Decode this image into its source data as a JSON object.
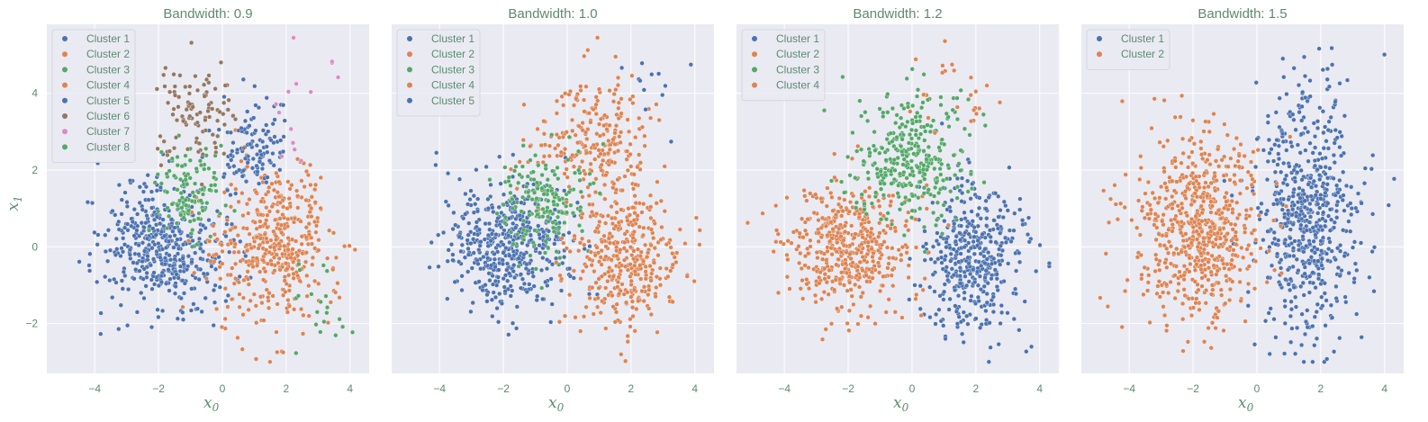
{
  "chart_data": [
    {
      "type": "scatter",
      "title": "Bandwidth: 0.9",
      "xlabel": "x0",
      "ylabel": "x1",
      "xlim": [
        -5.5,
        4.6
      ],
      "ylim": [
        -3.3,
        5.8
      ],
      "xticks": [
        -4,
        -2,
        0,
        2,
        4
      ],
      "yticks": [
        -2,
        0,
        2,
        4
      ],
      "legend_position": "upper-left",
      "series": [
        {
          "name": "Cluster 1",
          "color": "#4c72b0",
          "center": [
            -1.8,
            0.0
          ],
          "spread": [
            1.0,
            0.8
          ],
          "count": 470
        },
        {
          "name": "Cluster 2",
          "color": "#dd8452",
          "center": [
            1.6,
            0.0
          ],
          "spread": [
            0.9,
            1.0
          ],
          "count": 430
        },
        {
          "name": "Cluster 3",
          "color": "#55a868",
          "center": [
            -1.0,
            1.5
          ],
          "spread": [
            0.5,
            0.6
          ],
          "count": 120
        },
        {
          "name": "Cluster 4",
          "color": "#dd8452",
          "center": [
            2.7,
            1.7
          ],
          "spread": [
            0.3,
            0.3
          ],
          "count": 6
        },
        {
          "name": "Cluster 5",
          "color": "#4c72b0",
          "center": [
            1.0,
            2.6
          ],
          "spread": [
            0.5,
            0.6
          ],
          "count": 120
        },
        {
          "name": "Cluster 6",
          "color": "#937860",
          "center": [
            -0.8,
            3.4
          ],
          "spread": [
            0.6,
            0.6
          ],
          "count": 100
        },
        {
          "name": "Cluster 7",
          "color": "#da8bc3",
          "center": [
            2.3,
            3.6
          ],
          "spread": [
            0.6,
            0.8
          ],
          "count": 14
        },
        {
          "name": "Cluster 8",
          "color": "#55a868",
          "center": [
            3.0,
            -1.6
          ],
          "spread": [
            0.4,
            0.7
          ],
          "count": 20
        }
      ]
    },
    {
      "type": "scatter",
      "title": "Bandwidth: 1.0",
      "xlabel": "x0",
      "ylabel": "",
      "xlim": [
        -5.5,
        4.6
      ],
      "ylim": [
        -3.3,
        5.8
      ],
      "xticks": [
        -4,
        -2,
        0,
        2,
        4
      ],
      "yticks": [
        -2,
        0,
        2,
        4
      ],
      "legend_position": "upper-left",
      "series": [
        {
          "name": "Cluster 1",
          "color": "#4c72b0",
          "center": [
            -1.8,
            0.0
          ],
          "spread": [
            1.0,
            0.8
          ],
          "count": 470
        },
        {
          "name": "Cluster 2",
          "color": "#dd8452",
          "center": [
            0.8,
            2.8
          ],
          "spread": [
            0.9,
            0.8
          ],
          "count": 240
        },
        {
          "name": "Cluster 3",
          "color": "#55a868",
          "center": [
            -0.8,
            1.2
          ],
          "spread": [
            0.7,
            0.7
          ],
          "count": 180
        },
        {
          "name": "Cluster 4",
          "color": "#dd8452",
          "center": [
            1.8,
            -0.3
          ],
          "spread": [
            0.8,
            0.9
          ],
          "count": 380
        },
        {
          "name": "Cluster 5",
          "color": "#4c72b0",
          "center": [
            2.6,
            4.4
          ],
          "spread": [
            0.5,
            0.6
          ],
          "count": 12
        }
      ]
    },
    {
      "type": "scatter",
      "title": "Bandwidth: 1.2",
      "xlabel": "x0",
      "ylabel": "",
      "xlim": [
        -5.5,
        4.6
      ],
      "ylim": [
        -3.3,
        5.8
      ],
      "xticks": [
        -4,
        -2,
        0,
        2,
        4
      ],
      "yticks": [
        -2,
        0,
        2,
        4
      ],
      "legend_position": "upper-left",
      "series": [
        {
          "name": "Cluster 1",
          "color": "#4c72b0",
          "center": [
            1.9,
            -0.3
          ],
          "spread": [
            0.8,
            1.0
          ],
          "count": 420
        },
        {
          "name": "Cluster 2",
          "color": "#dd8452",
          "center": [
            -2.0,
            0.0
          ],
          "spread": [
            1.0,
            0.8
          ],
          "count": 480
        },
        {
          "name": "Cluster 3",
          "color": "#55a868",
          "center": [
            0.0,
            2.3
          ],
          "spread": [
            0.9,
            0.9
          ],
          "count": 330
        },
        {
          "name": "Cluster 4",
          "color": "#dd8452",
          "center": [
            1.2,
            4.0
          ],
          "spread": [
            0.8,
            0.6
          ],
          "count": 25
        }
      ]
    },
    {
      "type": "scatter",
      "title": "Bandwidth: 1.5",
      "xlabel": "x0",
      "ylabel": "",
      "xlim": [
        -5.5,
        4.6
      ],
      "ylim": [
        -3.3,
        5.8
      ],
      "xticks": [
        -4,
        -2,
        0,
        2,
        4
      ],
      "yticks": [
        -2,
        0,
        2,
        4
      ],
      "legend_position": "upper-left",
      "series": [
        {
          "name": "Cluster 1",
          "color": "#4c72b0",
          "center": [
            1.6,
            0.9
          ],
          "spread": [
            0.8,
            1.6
          ],
          "count": 620
        },
        {
          "name": "Cluster 2",
          "color": "#dd8452",
          "center": [
            -1.8,
            0.5
          ],
          "spread": [
            1.0,
            1.2
          ],
          "count": 640
        }
      ]
    }
  ]
}
